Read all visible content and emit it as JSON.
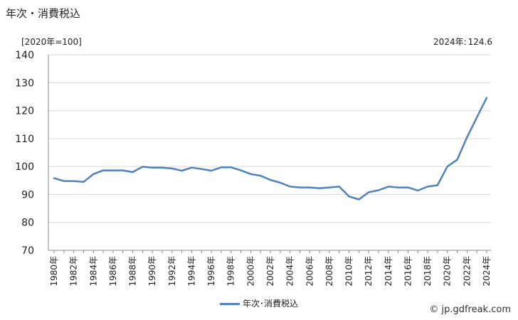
{
  "title": "年次・消費税込",
  "unit_label": "[2020年=100]",
  "latest": {
    "label": "2024年:",
    "value": "124.6"
  },
  "legend": {
    "label": "年次･消費税込",
    "color": "#4f81bd"
  },
  "credit": "© jp.gdfreak.com",
  "chart_data": {
    "type": "line",
    "title": "年次・消費税込",
    "ylabel": "[2020年=100]",
    "ylim": [
      70,
      140
    ],
    "y_ticks": [
      70,
      80,
      90,
      100,
      110,
      120,
      130,
      140
    ],
    "grid": true,
    "legend_position": "bottom-center",
    "x": [
      1980,
      1981,
      1982,
      1983,
      1984,
      1985,
      1986,
      1987,
      1988,
      1989,
      1990,
      1991,
      1992,
      1993,
      1994,
      1995,
      1996,
      1997,
      1998,
      1999,
      2000,
      2001,
      2002,
      2003,
      2004,
      2005,
      2006,
      2007,
      2008,
      2009,
      2010,
      2011,
      2012,
      2013,
      2014,
      2015,
      2016,
      2017,
      2018,
      2019,
      2020,
      2021,
      2022,
      2023,
      2024
    ],
    "x_tick_labels": [
      "1980年",
      "1982年",
      "1984年",
      "1986年",
      "1988年",
      "1990年",
      "1992年",
      "1994年",
      "1996年",
      "1998年",
      "2000年",
      "2002年",
      "2004年",
      "2006年",
      "2008年",
      "2010年",
      "2012年",
      "2014年",
      "2016年",
      "2018年",
      "2020年",
      "2022年",
      "2024年"
    ],
    "series": [
      {
        "name": "年次･消費税込",
        "color": "#4f81bd",
        "values": [
          95.8,
          94.8,
          94.8,
          94.5,
          97.3,
          98.6,
          98.6,
          98.6,
          98.0,
          99.9,
          99.6,
          99.6,
          99.3,
          98.5,
          99.6,
          99.1,
          98.5,
          99.7,
          99.7,
          98.6,
          97.3,
          96.7,
          95.2,
          94.2,
          92.8,
          92.5,
          92.5,
          92.2,
          92.5,
          92.8,
          89.3,
          88.2,
          90.8,
          91.5,
          92.8,
          92.5,
          92.5,
          91.4,
          92.8,
          93.3,
          100.0,
          102.4,
          110.5,
          117.6,
          124.6
        ]
      }
    ]
  }
}
